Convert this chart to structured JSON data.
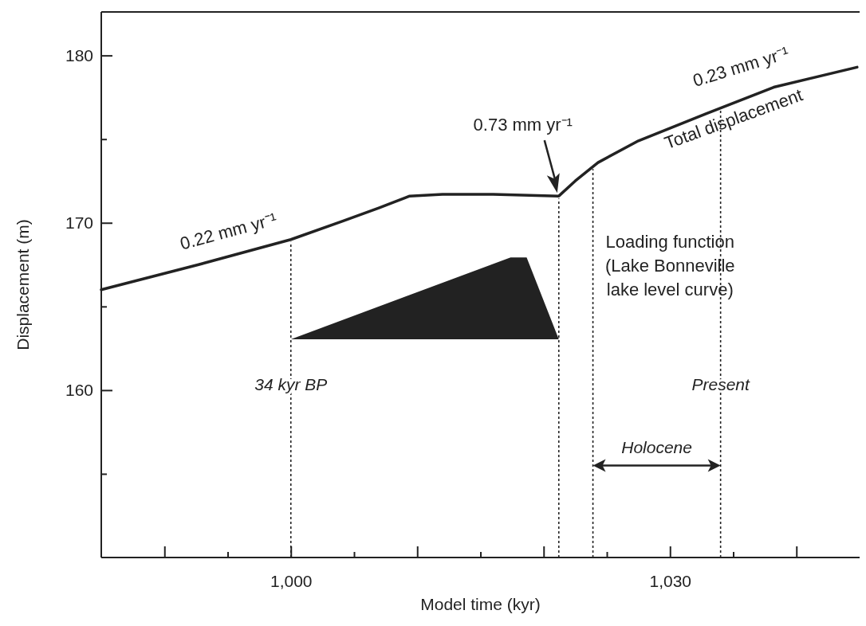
{
  "chart_data": {
    "type": "line",
    "xlabel": "Model time (kyr)",
    "ylabel": "Displacement (m)",
    "xlim": [
      985,
      1045
    ],
    "ylim": [
      150,
      182.6
    ],
    "xticks": [
      {
        "value": 990,
        "label": null
      },
      {
        "value": 995,
        "label": null
      },
      {
        "value": 1000,
        "label": "1,000"
      },
      {
        "value": 1005,
        "label": null
      },
      {
        "value": 1010,
        "label": null
      },
      {
        "value": 1015,
        "label": null
      },
      {
        "value": 1020,
        "label": null
      },
      {
        "value": 1025,
        "label": null
      },
      {
        "value": 1030,
        "label": "1,030"
      },
      {
        "value": 1035,
        "label": null
      },
      {
        "value": 1040,
        "label": null
      }
    ],
    "yticks": [
      {
        "value": 155,
        "label": null
      },
      160,
      {
        "value": 165,
        "label": null
      },
      170,
      {
        "value": 175,
        "label": null
      },
      180
    ],
    "grid": false,
    "marker": "none",
    "line_style": "solid",
    "series": [
      {
        "color": "#222222",
        "x": [
          985,
          992.7,
          1000,
          1004.1,
          1007,
          1009.4,
          1012,
          1016,
          1021.2,
          1022.5,
          1024.3,
          1027.5,
          1032.8,
          1038.2,
          1044.8
        ],
        "values": [
          166.0,
          167.5,
          169.0,
          170.1,
          170.9,
          171.6,
          171.7,
          171.7,
          171.6,
          172.5,
          173.6,
          174.9,
          176.5,
          178.1,
          179.3
        ]
      }
    ],
    "ref_lines": [
      {
        "axis": "x",
        "value": 1000,
        "label": "34 kyr BP",
        "line_style": "dotted",
        "color": "#222222"
      },
      {
        "axis": "x",
        "value": 1021.2,
        "label": null,
        "line_style": "dotted",
        "color": "#222222"
      },
      {
        "axis": "x",
        "value": 1023.9,
        "label": null,
        "line_style": "dotted",
        "color": "#222222"
      },
      {
        "axis": "x",
        "value": 1034,
        "label": "Present",
        "line_style": "dotted",
        "color": "#222222"
      }
    ],
    "annotations": [
      {
        "text": "0.22 mm yr⁻¹",
        "x": 995.5,
        "y": 168.1
      },
      "0.73 mm yr⁻¹",
      {
        "text": "0.23 mm yr⁻¹",
        "x": 1037,
        "y": 177.8
      },
      {
        "text": "Total displacement",
        "x": 1035.5,
        "y": 177.3
      },
      "Loading function\n(Lake Bonneville\nlake level curve)",
      "Holocene"
    ]
  }
}
